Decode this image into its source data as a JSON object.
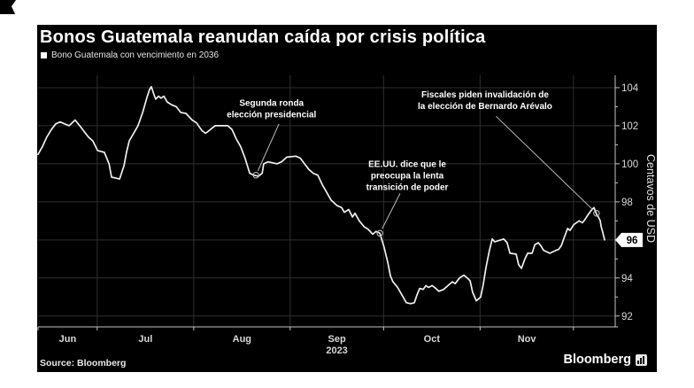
{
  "card": {
    "title": "Bonos Guatemala reanudan caída por crisis política",
    "legend_label": "Bono Guatemala con vencimiento en 2036",
    "source": "Source: Bloomberg",
    "brand": "Bloomberg",
    "brand_icon": "bar-chart-icon"
  },
  "colors": {
    "page_bg": "#ffffff",
    "card_bg": "#000000",
    "line": "#f0f0f0",
    "grid": "#2f2f2f",
    "axis": "#c4c4c4",
    "tick_label": "#d8d8d8",
    "annotation_text": "#ffffff",
    "arrow": "#bdbdbd",
    "badge_bg": "#ffffff",
    "badge_text": "#000000"
  },
  "chart_data": {
    "type": "line",
    "title": "Bonos Guatemala reanudan caída por crisis política",
    "legend": "Bono Guatemala con vencimiento en 2036",
    "ylabel": "Centavos de USD",
    "x_axis": {
      "domain_days": 182,
      "month_gridlines_t": [
        19,
        50,
        81,
        111,
        142,
        172
      ],
      "month_labels": [
        {
          "label": "Jun",
          "center_t": 9.5
        },
        {
          "label": "Jul",
          "center_t": 34.5
        },
        {
          "label": "Aug",
          "center_t": 65.5
        },
        {
          "label": "Sep",
          "center_t": 96
        },
        {
          "label": "Oct",
          "center_t": 126.5
        },
        {
          "label": "Nov",
          "center_t": 157
        }
      ],
      "year_label": {
        "text": "2023",
        "center_t": 96
      }
    },
    "y_axis": {
      "title": "Centavos de USD",
      "major_ticks": [
        104,
        102,
        100,
        98,
        96,
        94,
        92
      ],
      "minor_ticks": [
        103,
        101,
        99,
        97,
        95,
        93
      ],
      "ylim": [
        91.43,
        104.65
      ]
    },
    "last_value": 96,
    "last_value_label": "96",
    "series": [
      {
        "name": "Bono Guatemala con vencimiento en 2036",
        "points": [
          [
            0,
            100.5
          ],
          [
            1.4,
            100.9
          ],
          [
            2.8,
            101.4
          ],
          [
            4.3,
            101.8
          ],
          [
            5.7,
            102.1
          ],
          [
            7.1,
            102.2
          ],
          [
            8.5,
            102.1
          ],
          [
            10,
            102.0
          ],
          [
            11.9,
            102.3
          ],
          [
            13.4,
            102.0
          ],
          [
            14.8,
            101.7
          ],
          [
            16.2,
            101.4
          ],
          [
            17.6,
            101.2
          ],
          [
            19.1,
            100.7
          ],
          [
            21.3,
            100.6
          ],
          [
            22.8,
            100.0
          ],
          [
            23.6,
            99.3
          ],
          [
            26.2,
            99.2
          ],
          [
            27.6,
            99.9
          ],
          [
            28.4,
            100.6
          ],
          [
            29.3,
            101.2
          ],
          [
            30.7,
            101.6
          ],
          [
            32.1,
            102.0
          ],
          [
            33.6,
            102.7
          ],
          [
            35,
            103.5
          ],
          [
            35.8,
            103.9
          ],
          [
            36.4,
            104.05
          ],
          [
            37.3,
            103.6
          ],
          [
            37.8,
            103.4
          ],
          [
            38.7,
            103.55
          ],
          [
            39.5,
            103.45
          ],
          [
            40.4,
            103.55
          ],
          [
            41.5,
            103.25
          ],
          [
            42.9,
            103.1
          ],
          [
            44.4,
            103.0
          ],
          [
            45.8,
            102.7
          ],
          [
            47.5,
            102.65
          ],
          [
            49.5,
            102.3
          ],
          [
            50.9,
            102.15
          ],
          [
            52.6,
            101.75
          ],
          [
            53.8,
            101.6
          ],
          [
            54.6,
            101.7
          ],
          [
            55.7,
            101.85
          ],
          [
            56.9,
            102.0
          ],
          [
            60.9,
            102.0
          ],
          [
            62.3,
            101.8
          ],
          [
            63.7,
            101.3
          ],
          [
            65.1,
            100.9
          ],
          [
            66.5,
            100.3
          ],
          [
            68,
            99.5
          ],
          [
            69.4,
            99.4
          ],
          [
            70.8,
            99.35
          ],
          [
            72,
            99.5
          ],
          [
            72.5,
            100.0
          ],
          [
            73.9,
            100.1
          ],
          [
            76.8,
            100.0
          ],
          [
            78.2,
            100.1
          ],
          [
            79.9,
            100.35
          ],
          [
            82.8,
            100.4
          ],
          [
            84.2,
            100.3
          ],
          [
            85.6,
            100.0
          ],
          [
            87,
            99.7
          ],
          [
            88.4,
            99.5
          ],
          [
            89.9,
            99.4
          ],
          [
            91.3,
            98.9
          ],
          [
            92.7,
            98.5
          ],
          [
            94.1,
            98.1
          ],
          [
            96.1,
            97.8
          ],
          [
            97.5,
            97.7
          ],
          [
            98.4,
            97.45
          ],
          [
            99.8,
            97.6
          ],
          [
            101,
            97.2
          ],
          [
            101.8,
            97.4
          ],
          [
            103.2,
            97.0
          ],
          [
            104.7,
            96.7
          ],
          [
            106.1,
            96.55
          ],
          [
            107.5,
            96.3
          ],
          [
            108.6,
            96.45
          ],
          [
            109.8,
            96.35
          ],
          [
            111.2,
            95.6
          ],
          [
            112.3,
            94.85
          ],
          [
            113.2,
            94.1
          ],
          [
            114,
            93.8
          ],
          [
            115.5,
            93.5
          ],
          [
            116.9,
            93.1
          ],
          [
            118.3,
            92.7
          ],
          [
            119.7,
            92.65
          ],
          [
            120.9,
            92.7
          ],
          [
            121.7,
            93.1
          ],
          [
            122.6,
            93.45
          ],
          [
            123.7,
            93.4
          ],
          [
            124.6,
            93.6
          ],
          [
            125.4,
            93.5
          ],
          [
            126.6,
            93.6
          ],
          [
            127.4,
            93.5
          ],
          [
            128.8,
            93.3
          ],
          [
            130.3,
            93.4
          ],
          [
            131.7,
            93.6
          ],
          [
            133.1,
            93.8
          ],
          [
            134,
            93.7
          ],
          [
            135.4,
            94.0
          ],
          [
            136.8,
            94.15
          ],
          [
            137.9,
            94.0
          ],
          [
            138.8,
            93.85
          ],
          [
            139.6,
            93.25
          ],
          [
            140.8,
            92.8
          ],
          [
            142.2,
            93.0
          ],
          [
            143,
            93.65
          ],
          [
            143.9,
            94.55
          ],
          [
            145,
            95.45
          ],
          [
            145.9,
            96.05
          ],
          [
            146.7,
            95.9
          ],
          [
            148.7,
            96.0
          ],
          [
            149.6,
            96.05
          ],
          [
            150.7,
            95.85
          ],
          [
            151.6,
            95.3
          ],
          [
            153.6,
            95.25
          ],
          [
            154.4,
            94.7
          ],
          [
            155.3,
            94.5
          ],
          [
            156.4,
            95.0
          ],
          [
            157.3,
            95.3
          ],
          [
            158.7,
            95.3
          ],
          [
            159.6,
            95.75
          ],
          [
            160.7,
            95.85
          ],
          [
            161.5,
            95.7
          ],
          [
            162.4,
            95.45
          ],
          [
            164.4,
            95.3
          ],
          [
            166.4,
            95.45
          ],
          [
            167.2,
            95.5
          ],
          [
            168.1,
            95.7
          ],
          [
            169.2,
            96.2
          ],
          [
            170.1,
            96.6
          ],
          [
            170.9,
            96.5
          ],
          [
            172.1,
            96.8
          ],
          [
            173.8,
            97.0
          ],
          [
            174.9,
            96.9
          ],
          [
            175.8,
            97.1
          ],
          [
            176.6,
            97.3
          ],
          [
            177.7,
            97.55
          ],
          [
            178.6,
            97.7
          ],
          [
            179.4,
            97.35
          ],
          [
            180,
            97.2
          ],
          [
            180.6,
            97.0
          ],
          [
            180.9,
            96.7
          ],
          [
            181.4,
            96.4
          ],
          [
            182,
            96.0
          ]
        ]
      }
    ],
    "annotations": [
      {
        "text_lines": [
          "Segunda ronda",
          "elección presidencial"
        ],
        "label_center": {
          "t": 75,
          "v": 102.9
        },
        "arrow_from": {
          "t": 77.4,
          "v": 102.1
        },
        "arrow_to": {
          "t": 70,
          "v": 99.4
        }
      },
      {
        "text_lines": [
          "EE.UU. dice que le",
          "preocupa la lenta",
          "transición de poder"
        ],
        "label_center": {
          "t": 118.6,
          "v": 99.4
        },
        "arrow_from": {
          "t": 116.3,
          "v": 98.44
        },
        "arrow_to": {
          "t": 109.8,
          "v": 96.35
        }
      },
      {
        "text_lines": [
          "Fiscales piden invalidación de",
          "la elección de Bernardo Arévalo"
        ],
        "label_center": {
          "t": 143.6,
          "v": 103.35
        },
        "arrow_from": {
          "t": 147.1,
          "v": 102.5
        },
        "arrow_to": {
          "t": 179.4,
          "v": 97.4
        }
      }
    ]
  }
}
